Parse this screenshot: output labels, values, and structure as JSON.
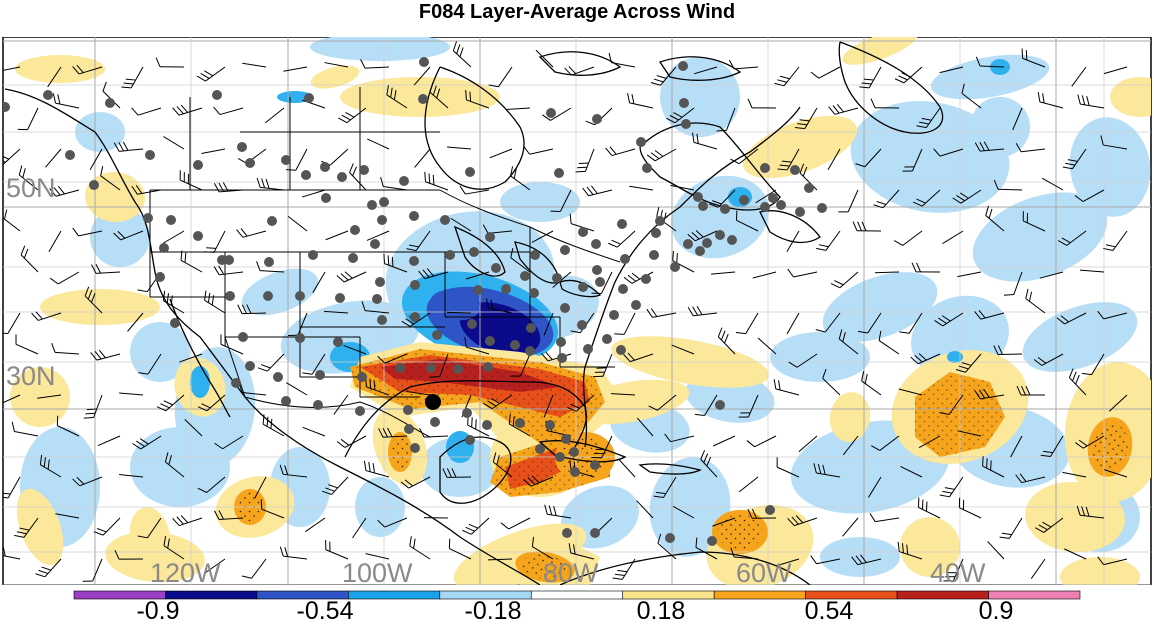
{
  "title": "F084 Layer-Average Across Wind",
  "lat_labels": [
    "50N",
    "30N"
  ],
  "lon_labels": [
    "120W",
    "100W",
    "80W",
    "60W",
    "40W"
  ],
  "colorbar": {
    "labels": [
      "-0.9",
      "-0.54",
      "-0.18",
      "0.18",
      "0.54",
      "0.9"
    ],
    "colors": [
      "#9b3fc4",
      "#0a0a8a",
      "#2f54c6",
      "#1aa3e8",
      "#a6d8f5",
      "#ffffff",
      "#fae38a",
      "#f5a41c",
      "#e8501a",
      "#b8201e",
      "#ee7fb2"
    ]
  },
  "fill_colors": {
    "light_blue": "#b6def7",
    "mid_blue": "#2fb0ef",
    "blue": "#2f54c6",
    "dark_blue": "#0a0a8a",
    "light_yellow": "#fbe89a",
    "orange": "#f5a41c",
    "red_orange": "#e8501a",
    "dark_red": "#b8201e"
  },
  "station_color": "#555555",
  "highlight_station_color": "#000000"
}
